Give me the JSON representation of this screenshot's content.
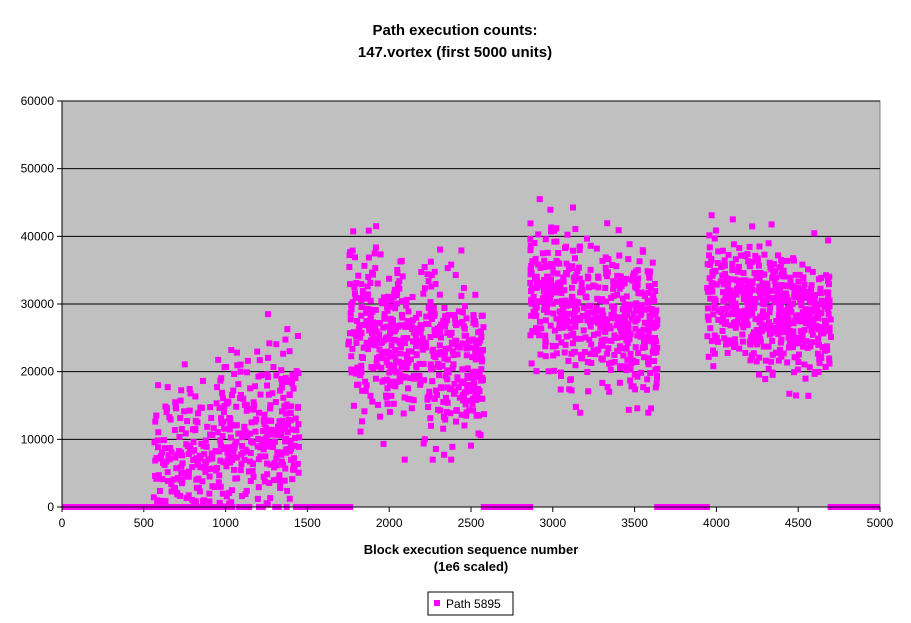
{
  "chart_data": {
    "type": "scatter",
    "title_lines": [
      "Path execution counts:",
      "147.vortex (first 5000 units)"
    ],
    "xlabel_lines": [
      "Block execution sequence number",
      "(1e6 scaled)"
    ],
    "ylabel": "",
    "xlim": [
      0,
      5000
    ],
    "ylim": [
      0,
      60000
    ],
    "x_ticks": [
      0,
      500,
      1000,
      1500,
      2000,
      2500,
      3000,
      3500,
      4000,
      4500,
      5000
    ],
    "x_tick_labels": [
      "0",
      "500",
      "1000",
      "1500",
      "2000",
      "2500",
      "3000",
      "3500",
      "4000",
      "4500",
      "5000"
    ],
    "y_ticks": [
      0,
      10000,
      20000,
      30000,
      40000,
      50000,
      60000
    ],
    "y_tick_labels": [
      "0",
      "10000",
      "20000",
      "30000",
      "40000",
      "50000",
      "60000"
    ],
    "grid": "horizontal major gridlines",
    "plot_background": "#c0c0c0",
    "marker_color": "#ff00ff",
    "legend_position": "bottom-center",
    "series": [
      {
        "name": "Path 5895",
        "marker": "square",
        "zero_segments": [
          [
            0,
            560
          ],
          [
            1440,
            1780
          ],
          [
            2560,
            2880
          ],
          [
            3620,
            3960
          ],
          [
            4680,
            5000
          ]
        ],
        "clusters": [
          {
            "x_range": [
              560,
              1450
            ],
            "y_center_start": 3000,
            "y_center_end": 13000,
            "y_spread": 6500,
            "y_min": 0,
            "y_max": 28500,
            "points": 520
          },
          {
            "x_range": [
              1750,
              2580
            ],
            "y_center_start": 27000,
            "y_center_end": 21000,
            "y_spread": 6000,
            "y_min": 7000,
            "y_max": 41500,
            "points": 560
          },
          {
            "x_range": [
              2860,
              3640
            ],
            "y_center_start": 32000,
            "y_center_end": 26000,
            "y_spread": 5000,
            "y_min": 13500,
            "y_max": 45500,
            "points": 560
          },
          {
            "x_range": [
              3940,
              4700
            ],
            "y_center_start": 32000,
            "y_center_end": 27000,
            "y_spread": 4500,
            "y_min": 15000,
            "y_max": 45500,
            "points": 560
          }
        ]
      }
    ]
  }
}
